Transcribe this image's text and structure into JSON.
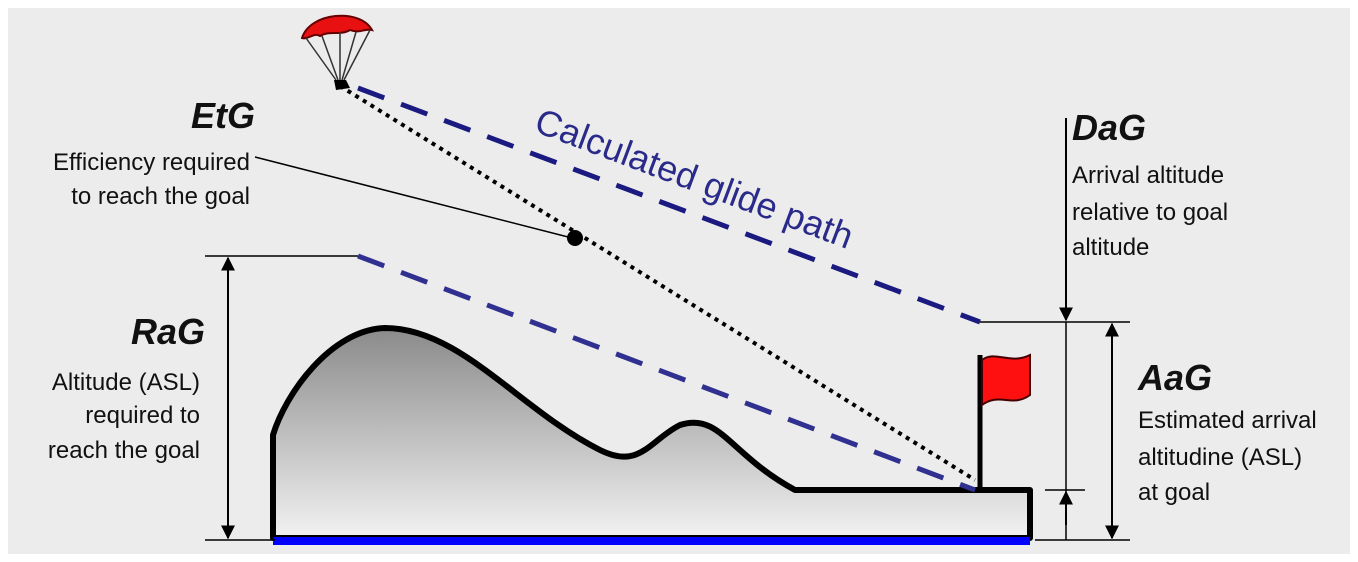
{
  "labels": {
    "etg": {
      "title": "EtG",
      "lines": [
        "Efficiency required",
        "to reach the goal"
      ]
    },
    "glide_path": "Calculated glide path",
    "dag": {
      "title": "DaG",
      "lines": [
        "Arrival altitude",
        "relative to goal",
        "altitude"
      ]
    },
    "rag": {
      "title": "RaG",
      "lines": [
        "Altitude (ASL)",
        "required to",
        "reach the goal"
      ]
    },
    "aag": {
      "title": "AaG",
      "lines": [
        "Estimated arrival",
        "altitudine (ASL)",
        "at goal"
      ]
    }
  }
}
